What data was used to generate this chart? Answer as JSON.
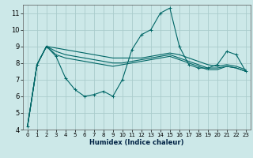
{
  "title": "",
  "xlabel": "Humidex (Indice chaleur)",
  "bg_color": "#cce8e8",
  "grid_color": "#aacccc",
  "line_color": "#006666",
  "xlim": [
    -0.5,
    23.5
  ],
  "ylim": [
    4,
    11.5
  ],
  "yticks": [
    4,
    5,
    6,
    7,
    8,
    9,
    10,
    11
  ],
  "xticks": [
    0,
    1,
    2,
    3,
    4,
    5,
    6,
    7,
    8,
    9,
    10,
    11,
    12,
    13,
    14,
    15,
    16,
    17,
    18,
    19,
    20,
    21,
    22,
    23
  ],
  "series_main": [
    4.2,
    7.9,
    9.0,
    8.4,
    7.1,
    6.4,
    6.0,
    6.1,
    6.3,
    6.0,
    7.0,
    8.8,
    9.7,
    10.0,
    11.0,
    11.3,
    9.0,
    7.9,
    7.7,
    7.7,
    7.9,
    8.7,
    8.5,
    7.5
  ],
  "series_smooth1": [
    4.2,
    7.9,
    9.0,
    8.9,
    8.8,
    8.7,
    8.6,
    8.5,
    8.4,
    8.3,
    8.3,
    8.3,
    8.3,
    8.4,
    8.5,
    8.6,
    8.5,
    8.3,
    8.1,
    7.9,
    7.8,
    7.9,
    7.8,
    7.6
  ],
  "series_smooth2": [
    4.2,
    7.9,
    9.0,
    8.7,
    8.5,
    8.4,
    8.3,
    8.2,
    8.1,
    8.0,
    8.0,
    8.1,
    8.2,
    8.3,
    8.4,
    8.5,
    8.3,
    8.1,
    7.9,
    7.7,
    7.7,
    7.8,
    7.7,
    7.5
  ],
  "series_smooth3": [
    4.2,
    7.9,
    9.0,
    8.5,
    8.3,
    8.2,
    8.1,
    8.0,
    7.9,
    7.8,
    7.9,
    8.0,
    8.1,
    8.2,
    8.3,
    8.4,
    8.2,
    8.0,
    7.8,
    7.6,
    7.6,
    7.8,
    7.7,
    7.5
  ]
}
